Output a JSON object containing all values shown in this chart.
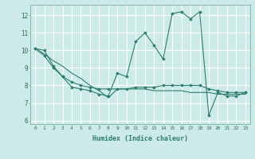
{
  "title": "",
  "xlabel": "Humidex (Indice chaleur)",
  "background_color": "#cceae7",
  "grid_color": "#ffffff",
  "line_color": "#2e7d6e",
  "xlim": [
    -0.5,
    23.5
  ],
  "ylim": [
    5.8,
    12.6
  ],
  "yticks": [
    6,
    7,
    8,
    9,
    10,
    11,
    12
  ],
  "xticks": [
    0,
    1,
    2,
    3,
    4,
    5,
    6,
    7,
    8,
    9,
    10,
    11,
    12,
    13,
    14,
    15,
    16,
    17,
    18,
    19,
    20,
    21,
    22,
    23
  ],
  "series": [
    [
      10.1,
      10.0,
      9.1,
      8.5,
      7.9,
      7.8,
      7.7,
      7.5,
      7.4,
      8.7,
      8.5,
      10.5,
      11.0,
      10.3,
      9.5,
      12.1,
      12.2,
      11.8,
      12.2,
      6.3,
      7.6,
      7.4,
      7.4,
      7.6
    ],
    [
      10.1,
      9.7,
      9.0,
      8.5,
      8.2,
      8.0,
      7.9,
      7.8,
      7.8,
      7.8,
      7.8,
      7.9,
      7.9,
      7.9,
      8.0,
      8.0,
      8.0,
      8.0,
      8.0,
      7.8,
      7.7,
      7.6,
      7.6,
      7.6
    ],
    [
      10.1,
      9.8,
      9.4,
      9.1,
      8.7,
      8.4,
      8.0,
      7.7,
      7.3,
      7.8,
      7.8,
      7.8,
      7.8,
      7.7,
      7.7,
      7.7,
      7.7,
      7.6,
      7.6,
      7.6,
      7.5,
      7.5,
      7.5,
      7.5
    ]
  ],
  "series_markers": [
    true,
    true,
    false
  ]
}
